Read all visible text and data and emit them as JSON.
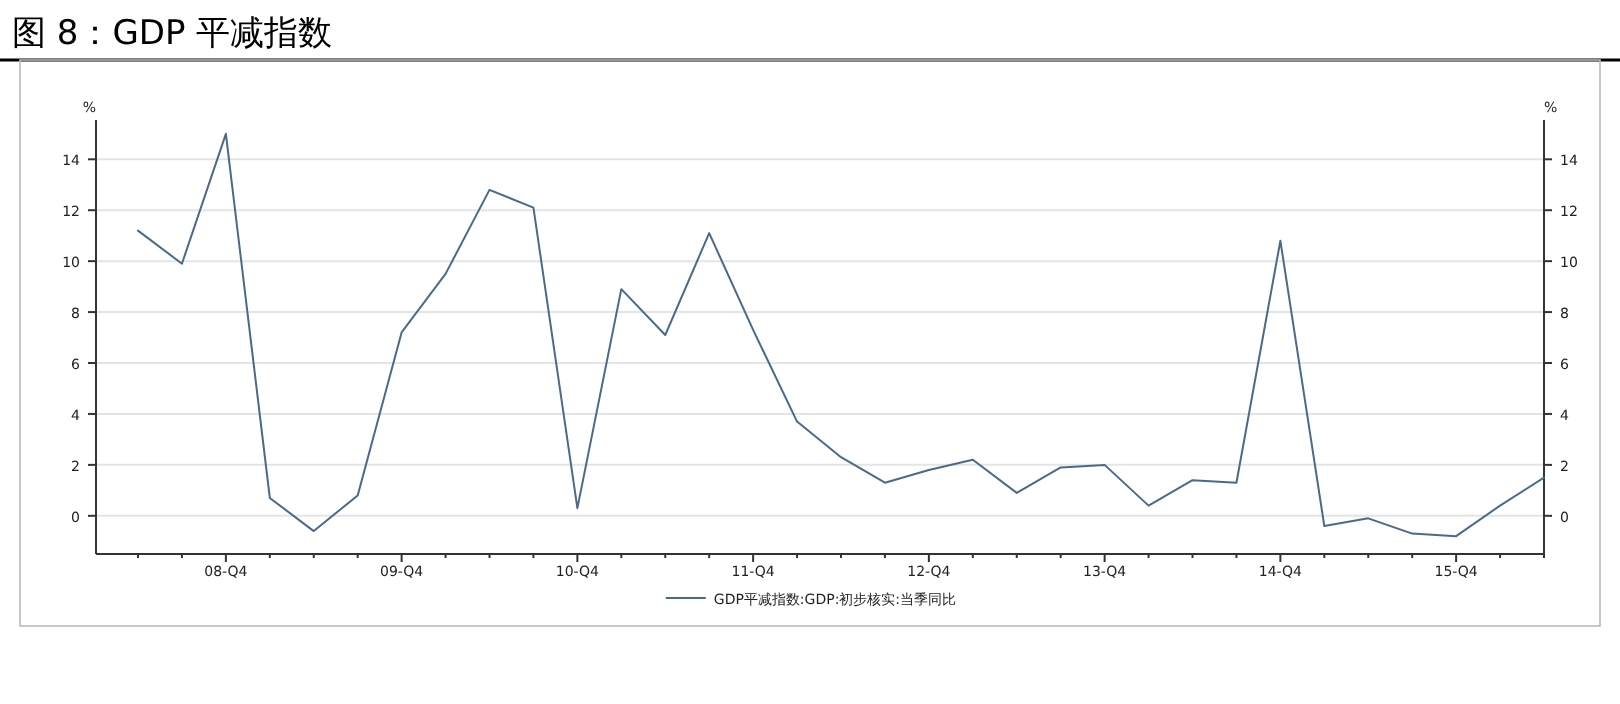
{
  "chart_data": {
    "type": "line",
    "title": "图 8：GDP 平减指数",
    "categories": [
      null,
      null,
      "08-Q4",
      null,
      null,
      null,
      "09-Q4",
      null,
      null,
      null,
      "10-Q4",
      null,
      null,
      null,
      "11-Q4",
      null,
      null,
      null,
      "12-Q4",
      null,
      null,
      null,
      "13-Q4",
      null,
      null,
      null,
      "14-Q4",
      null,
      null,
      null,
      "15-Q4",
      null,
      null
    ],
    "series": [
      {
        "name": "GDP平减指数:GDP:初步核实:当季同比",
        "color": "#4a6a8c",
        "values": [
          11.2,
          9.9,
          15.0,
          0.7,
          -0.6,
          0.8,
          7.2,
          9.5,
          12.8,
          12.1,
          0.3,
          8.9,
          7.1,
          11.1,
          7.3,
          3.7,
          2.3,
          1.3,
          1.8,
          2.2,
          0.9,
          1.9,
          2.0,
          0.4,
          1.4,
          1.3,
          10.8,
          -0.4,
          -0.1,
          -0.7,
          -0.8,
          0.4,
          1.5
        ]
      }
    ],
    "ylim": [
      -1.5,
      15.7
    ],
    "yticks": [
      0,
      2,
      4,
      6,
      8,
      10,
      12,
      14
    ],
    "ylabel": "%",
    "y2lim": [
      -1.5,
      15.7
    ],
    "y2ticks": [
      0,
      2,
      4,
      6,
      8,
      10,
      12,
      14
    ],
    "y2label": "%",
    "grid": "y",
    "legend": "bottom"
  }
}
